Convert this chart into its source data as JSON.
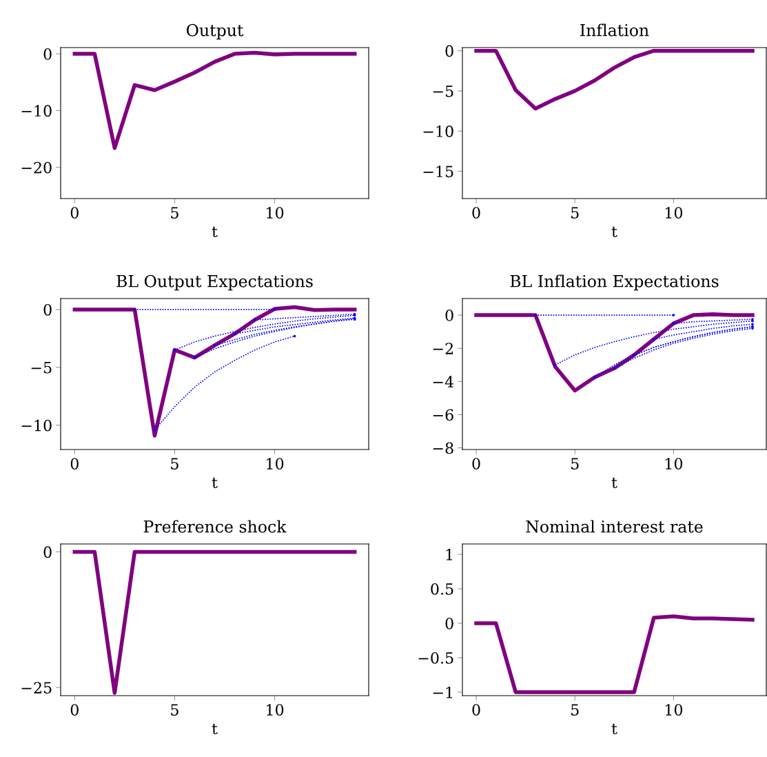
{
  "chart_data": [
    {
      "type": "line",
      "title": "Output",
      "xlabel": "t",
      "xlim": [
        -0.7,
        14.7
      ],
      "ylim": [
        -25.5,
        1.1
      ],
      "xticks": [
        0,
        5,
        10
      ],
      "yticks": [
        -20,
        -10,
        0
      ],
      "grid": false,
      "series": [
        {
          "color": "#800080",
          "line_style": "solid",
          "x": [
            0,
            1,
            2,
            3,
            4,
            5,
            6,
            7,
            8,
            9,
            10,
            11,
            12,
            13,
            14
          ],
          "values": [
            0,
            0,
            -16.6,
            -5.5,
            -6.4,
            -4.9,
            -3.3,
            -1.4,
            0,
            0.2,
            -0.1,
            0,
            0,
            0,
            0
          ]
        }
      ]
    },
    {
      "type": "line",
      "title": "Inflation",
      "xlabel": "t",
      "xlim": [
        -0.7,
        14.7
      ],
      "ylim": [
        -18.4,
        0.4
      ],
      "xticks": [
        0,
        5,
        10
      ],
      "yticks": [
        -15,
        -10,
        -5,
        0
      ],
      "grid": false,
      "series": [
        {
          "color": "#800080",
          "line_style": "solid",
          "x": [
            0,
            1,
            2,
            3,
            4,
            5,
            6,
            7,
            8,
            9,
            10,
            11,
            12,
            13,
            14
          ],
          "values": [
            0,
            0,
            -4.9,
            -7.2,
            -6.0,
            -5.0,
            -3.7,
            -2.1,
            -0.8,
            0,
            0,
            0,
            0,
            0,
            0
          ]
        }
      ]
    },
    {
      "type": "line",
      "title": "BL Output Expectations",
      "xlabel": "t",
      "xlim": [
        -0.7,
        14.7
      ],
      "ylim": [
        -12.1,
        0.95
      ],
      "xticks": [
        0,
        5,
        10
      ],
      "yticks": [
        -10,
        -5,
        0
      ],
      "grid": false,
      "series": [
        {
          "color": "#0000ff",
          "line_style": "dotted",
          "x": [
            3,
            4,
            5,
            6,
            7,
            8,
            9,
            10
          ],
          "values": [
            0,
            0,
            0,
            0,
            0,
            0,
            0,
            0
          ]
        },
        {
          "color": "#0000ff",
          "line_style": "dotted",
          "x": [
            4,
            5,
            6,
            7,
            8,
            9,
            10,
            11
          ],
          "values": [
            -10.4,
            -8.4,
            -6.7,
            -5.4,
            -4.4,
            -3.5,
            -2.8,
            -2.3
          ]
        },
        {
          "color": "#0000ff",
          "line_style": "dotted",
          "x": [
            5,
            6,
            7,
            8,
            9,
            10,
            11,
            12,
            13,
            14
          ],
          "values": [
            -3.5,
            -2.8,
            -2.3,
            -1.9,
            -1.55,
            -1.25,
            -1.0,
            -0.8,
            -0.65,
            -0.5
          ]
        },
        {
          "color": "#0000ff",
          "line_style": "dotted",
          "x": [
            6,
            7,
            8,
            9,
            10,
            11,
            12,
            13,
            14
          ],
          "values": [
            -4.15,
            -3.4,
            -2.8,
            -2.3,
            -1.9,
            -1.55,
            -1.25,
            -1.0,
            -0.8
          ]
        },
        {
          "color": "#0000ff",
          "line_style": "dotted",
          "x": [
            7,
            8,
            9,
            10,
            11,
            12,
            13,
            14
          ],
          "values": [
            -3.1,
            -2.6,
            -2.15,
            -1.8,
            -1.5,
            -1.25,
            -1.0,
            -0.85
          ]
        },
        {
          "color": "#0000ff",
          "line_style": "dotted",
          "x": [
            8,
            9,
            10,
            11,
            12,
            13,
            14
          ],
          "values": [
            -2.1,
            -1.8,
            -1.5,
            -1.3,
            -1.1,
            -0.9,
            -0.75
          ]
        },
        {
          "color": "#0000ff",
          "line_style": "dotted",
          "x": [
            9,
            10,
            11,
            12,
            13,
            14
          ],
          "values": [
            -0.9,
            -0.8,
            -0.7,
            -0.6,
            -0.5,
            -0.4
          ]
        },
        {
          "color": "#800080",
          "line_style": "solid",
          "x": [
            0,
            1,
            2,
            3,
            4,
            5,
            6,
            7,
            8,
            9,
            10,
            11,
            12,
            13,
            14
          ],
          "values": [
            0,
            0,
            0,
            0,
            -10.9,
            -3.5,
            -4.15,
            -3.1,
            -2.1,
            -0.9,
            0.05,
            0.2,
            -0.05,
            0,
            0
          ]
        }
      ]
    },
    {
      "type": "line",
      "title": "BL Inflation Expectations",
      "xlabel": "t",
      "xlim": [
        -0.7,
        14.7
      ],
      "ylim": [
        -8.1,
        1.0
      ],
      "xticks": [
        0,
        5,
        10
      ],
      "yticks": [
        -8,
        -6,
        -4,
        -2,
        0
      ],
      "grid": false,
      "series": [
        {
          "color": "#0000ff",
          "line_style": "dotted",
          "x": [
            3,
            4,
            5,
            6,
            7,
            8,
            9,
            10
          ],
          "values": [
            0,
            0,
            0,
            0,
            0,
            0,
            0,
            0
          ]
        },
        {
          "color": "#0000ff",
          "line_style": "dotted",
          "x": [
            4,
            5,
            6,
            7,
            8,
            9,
            10,
            11,
            12,
            13,
            14
          ],
          "values": [
            -3.0,
            -2.4,
            -1.95,
            -1.6,
            -1.3,
            -1.05,
            -0.85,
            -0.7,
            -0.55,
            -0.45,
            -0.35
          ]
        },
        {
          "color": "#0000ff",
          "line_style": "dotted",
          "x": [
            6,
            7,
            8,
            9,
            10,
            11,
            12,
            13,
            14
          ],
          "values": [
            -3.75,
            -3.0,
            -2.4,
            -1.95,
            -1.6,
            -1.3,
            -1.05,
            -0.85,
            -0.7
          ]
        },
        {
          "color": "#0000ff",
          "line_style": "dotted",
          "x": [
            7,
            8,
            9,
            10,
            11,
            12,
            13,
            14
          ],
          "values": [
            -3.2,
            -2.6,
            -2.1,
            -1.7,
            -1.4,
            -1.15,
            -0.95,
            -0.8
          ]
        },
        {
          "color": "#0000ff",
          "line_style": "dotted",
          "x": [
            8,
            9,
            10,
            11,
            12,
            13,
            14
          ],
          "values": [
            -2.4,
            -1.95,
            -1.6,
            -1.3,
            -1.05,
            -0.85,
            -0.7
          ]
        },
        {
          "color": "#0000ff",
          "line_style": "dotted",
          "x": [
            9,
            10,
            11,
            12,
            13,
            14
          ],
          "values": [
            -1.45,
            -1.2,
            -1.0,
            -0.8,
            -0.65,
            -0.55
          ]
        },
        {
          "color": "#0000ff",
          "line_style": "dotted",
          "x": [
            10,
            11,
            12,
            13,
            14
          ],
          "values": [
            -0.5,
            -0.4,
            -0.35,
            -0.3,
            -0.25
          ]
        },
        {
          "color": "#800080",
          "line_style": "solid",
          "x": [
            0,
            1,
            2,
            3,
            4,
            5,
            6,
            7,
            8,
            9,
            10,
            11,
            12,
            13,
            14
          ],
          "values": [
            0,
            0,
            0,
            0,
            -3.1,
            -4.55,
            -3.75,
            -3.2,
            -2.4,
            -1.45,
            -0.5,
            0,
            0.05,
            0,
            0
          ]
        }
      ]
    },
    {
      "type": "line",
      "title": "Preference shock",
      "xlabel": "t",
      "xlim": [
        -0.7,
        14.7
      ],
      "ylim": [
        -26.5,
        1.45
      ],
      "xticks": [
        0,
        5,
        10
      ],
      "yticks": [
        -25,
        0
      ],
      "grid": false,
      "series": [
        {
          "color": "#800080",
          "line_style": "solid",
          "x": [
            0,
            1,
            2,
            3,
            4,
            5,
            6,
            7,
            8,
            9,
            10,
            11,
            12,
            13,
            14
          ],
          "values": [
            0,
            0,
            -26,
            0,
            0,
            0,
            0,
            0,
            0,
            0,
            0,
            0,
            0,
            0,
            0
          ]
        }
      ]
    },
    {
      "type": "line",
      "title": "Nominal interest rate",
      "xlabel": "t",
      "xlim": [
        -0.7,
        14.7
      ],
      "ylim": [
        -1.05,
        1.15
      ],
      "xticks": [
        0,
        5,
        10
      ],
      "yticks": [
        -1,
        -0.5,
        0,
        0.5,
        1
      ],
      "grid": false,
      "series": [
        {
          "color": "#800080",
          "line_style": "solid",
          "x": [
            0,
            1,
            2,
            3,
            4,
            5,
            6,
            7,
            8,
            9,
            10,
            11,
            12,
            13,
            14
          ],
          "values": [
            0,
            0,
            -1,
            -1,
            -1,
            -1,
            -1,
            -1,
            -1,
            0.08,
            0.1,
            0.07,
            0.07,
            0.06,
            0.05
          ]
        }
      ]
    }
  ]
}
